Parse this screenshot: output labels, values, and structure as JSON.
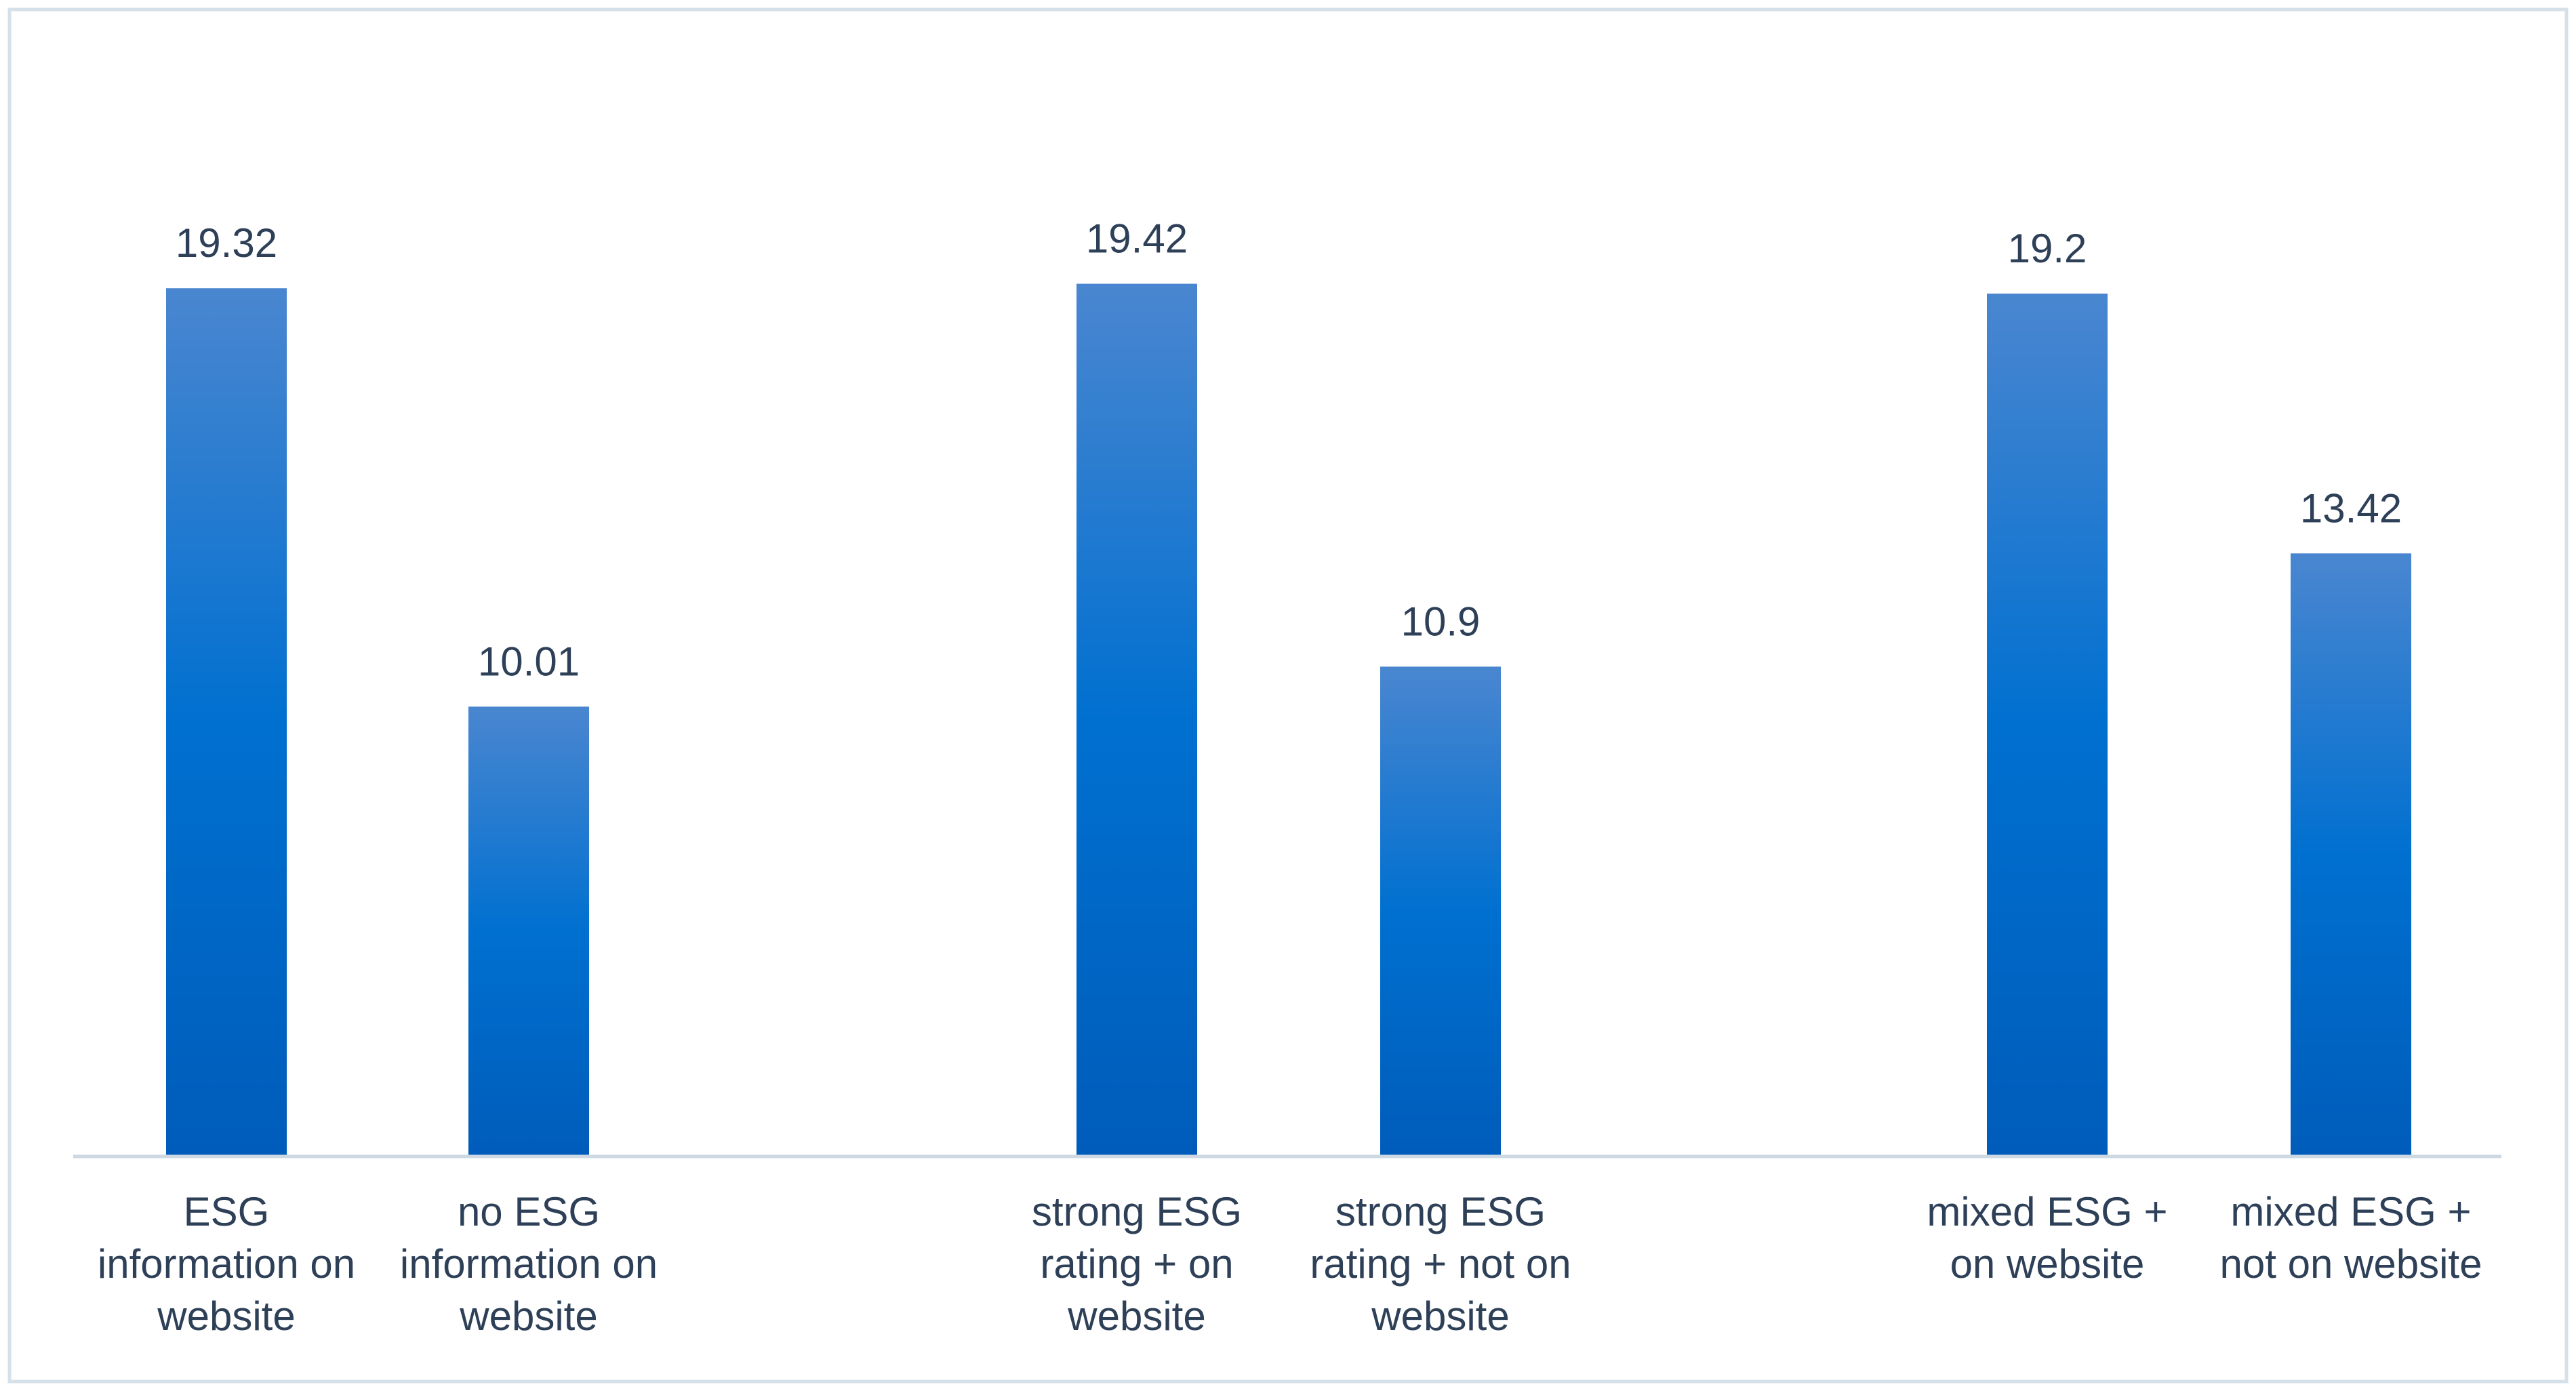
{
  "colors": {
    "bar_top": "#4a86d0",
    "bar_mid": "#0070d0",
    "bar_bottom": "#005cba",
    "axis": "#cdd8e2",
    "frame": "#d6e0e8",
    "text": "#2e4057"
  },
  "chart_data": {
    "type": "bar",
    "title": "",
    "xlabel": "",
    "ylabel": "",
    "ylim": [
      0,
      23.2
    ],
    "grid": false,
    "groups": [
      {
        "categories": [
          [
            "ESG",
            "information on",
            "website"
          ],
          [
            "no ESG",
            "information on",
            "website"
          ]
        ],
        "values": [
          19.32,
          10.01
        ],
        "value_labels": [
          "19.32",
          "10.01"
        ]
      },
      {
        "categories": [
          [
            "strong ESG",
            "rating + on",
            "website"
          ],
          [
            "strong ESG",
            "rating + not on",
            "website"
          ]
        ],
        "values": [
          19.42,
          10.9
        ],
        "value_labels": [
          "19.42",
          "10.9"
        ]
      },
      {
        "categories": [
          [
            "mixed ESG +",
            "on website"
          ],
          [
            "mixed ESG +",
            "not on website"
          ]
        ],
        "values": [
          19.2,
          13.42
        ],
        "value_labels": [
          "19.2",
          "13.42"
        ]
      }
    ]
  }
}
